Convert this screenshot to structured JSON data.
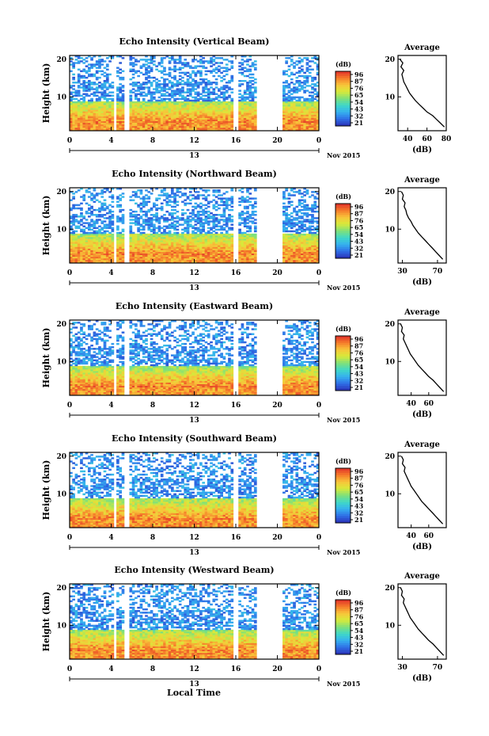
{
  "chart_data": [
    {
      "type": "heatmap",
      "title": "Echo Intensity (Vertical Beam)",
      "ylabel": "Height (km)",
      "y_ticks": [
        "20",
        "10"
      ],
      "x_ticks": [
        "0",
        "4",
        "8",
        "12",
        "16",
        "20",
        "0"
      ],
      "date_label": "13",
      "date_suffix": "Nov 2015",
      "colorbar": {
        "unit": "(dB)",
        "ticks": [
          "96",
          "87",
          "76",
          "65",
          "54",
          "43",
          "32",
          "21"
        ]
      },
      "data_gaps_hours": [
        [
          4.2,
          4.6
        ],
        [
          5.3,
          5.8
        ],
        [
          15.7,
          16.2
        ],
        [
          18.1,
          20.4
        ]
      ],
      "average": {
        "title": "Average",
        "xlabel": "(dB)",
        "x_ticks": [
          "40",
          "60",
          "80"
        ],
        "y_ticks": [
          "20",
          "10"
        ],
        "xlim": [
          30,
          80
        ],
        "profile": [
          [
            78,
            2
          ],
          [
            74,
            3
          ],
          [
            70,
            4
          ],
          [
            66,
            5
          ],
          [
            60,
            6
          ],
          [
            56,
            7
          ],
          [
            52,
            8
          ],
          [
            48,
            9
          ],
          [
            45,
            10
          ],
          [
            42,
            11
          ],
          [
            40,
            12
          ],
          [
            38,
            13
          ],
          [
            36,
            14
          ],
          [
            35,
            15
          ],
          [
            34,
            16
          ],
          [
            36,
            17
          ],
          [
            33,
            18
          ],
          [
            35,
            19
          ],
          [
            32,
            20
          ]
        ]
      }
    },
    {
      "type": "heatmap",
      "title": "Echo Intensity (Northward Beam)",
      "ylabel": "Height (km)",
      "y_ticks": [
        "20",
        "10"
      ],
      "x_ticks": [
        "0",
        "4",
        "8",
        "12",
        "16",
        "20",
        "0"
      ],
      "date_label": "13",
      "date_suffix": "Nov 2015",
      "colorbar": {
        "unit": "(dB)",
        "ticks": [
          "96",
          "87",
          "76",
          "65",
          "54",
          "43",
          "32",
          "21"
        ]
      },
      "data_gaps_hours": [
        [
          4.2,
          4.6
        ],
        [
          5.3,
          5.8
        ],
        [
          15.7,
          16.2
        ],
        [
          18.1,
          20.4
        ]
      ],
      "average": {
        "title": "Average",
        "xlabel": "(dB)",
        "x_ticks": [
          "30",
          "70"
        ],
        "y_ticks": [
          "20",
          "10"
        ],
        "xlim": [
          25,
          80
        ],
        "profile": [
          [
            76,
            2
          ],
          [
            72,
            3
          ],
          [
            68,
            4
          ],
          [
            64,
            5
          ],
          [
            60,
            6
          ],
          [
            56,
            7
          ],
          [
            52,
            8
          ],
          [
            48,
            9
          ],
          [
            45,
            10
          ],
          [
            42,
            11
          ],
          [
            40,
            12
          ],
          [
            37,
            13
          ],
          [
            35,
            14
          ],
          [
            34,
            15
          ],
          [
            32,
            16
          ],
          [
            33,
            17
          ],
          [
            30,
            18
          ],
          [
            31,
            19
          ],
          [
            29,
            20
          ]
        ]
      }
    },
    {
      "type": "heatmap",
      "title": "Echo Intensity (Eastward Beam)",
      "ylabel": "Height (km)",
      "y_ticks": [
        "20",
        "10"
      ],
      "x_ticks": [
        "0",
        "4",
        "8",
        "12",
        "16",
        "20",
        "0"
      ],
      "date_label": "13",
      "date_suffix": "Nov 2015",
      "colorbar": {
        "unit": "(dB)",
        "ticks": [
          "96",
          "87",
          "76",
          "65",
          "54",
          "43",
          "32",
          "21"
        ]
      },
      "data_gaps_hours": [
        [
          4.2,
          4.6
        ],
        [
          5.3,
          5.8
        ],
        [
          15.7,
          16.2
        ],
        [
          18.1,
          20.4
        ]
      ],
      "average": {
        "title": "Average",
        "xlabel": "(dB)",
        "x_ticks": [
          "40",
          "60"
        ],
        "y_ticks": [
          "20",
          "10"
        ],
        "xlim": [
          25,
          80
        ],
        "profile": [
          [
            77,
            2
          ],
          [
            73,
            3
          ],
          [
            69,
            4
          ],
          [
            65,
            5
          ],
          [
            60,
            6
          ],
          [
            56,
            7
          ],
          [
            52,
            8
          ],
          [
            48,
            9
          ],
          [
            45,
            10
          ],
          [
            42,
            11
          ],
          [
            39,
            12
          ],
          [
            37,
            13
          ],
          [
            35,
            14
          ],
          [
            33,
            15
          ],
          [
            31,
            16
          ],
          [
            32,
            17
          ],
          [
            29,
            18
          ],
          [
            30,
            19
          ],
          [
            28,
            20
          ]
        ]
      }
    },
    {
      "type": "heatmap",
      "title": "Echo Intensity (Southward Beam)",
      "ylabel": "Height (km)",
      "y_ticks": [
        "20",
        "10"
      ],
      "x_ticks": [
        "0",
        "4",
        "8",
        "12",
        "16",
        "20",
        "0"
      ],
      "date_label": "13",
      "date_suffix": "Nov 2015",
      "colorbar": {
        "unit": "(dB)",
        "ticks": [
          "96",
          "87",
          "76",
          "65",
          "54",
          "43",
          "32",
          "21"
        ]
      },
      "data_gaps_hours": [
        [
          4.2,
          4.6
        ],
        [
          5.3,
          5.8
        ],
        [
          15.7,
          16.2
        ],
        [
          18.1,
          20.4
        ]
      ],
      "average": {
        "title": "Average",
        "xlabel": "(dB)",
        "x_ticks": [
          "40",
          "60"
        ],
        "y_ticks": [
          "20",
          "10"
        ],
        "xlim": [
          25,
          80
        ],
        "profile": [
          [
            76,
            2
          ],
          [
            72,
            3
          ],
          [
            68,
            4
          ],
          [
            64,
            5
          ],
          [
            60,
            6
          ],
          [
            56,
            7
          ],
          [
            52,
            8
          ],
          [
            49,
            9
          ],
          [
            46,
            10
          ],
          [
            43,
            11
          ],
          [
            40,
            12
          ],
          [
            38,
            13
          ],
          [
            36,
            14
          ],
          [
            34,
            15
          ],
          [
            32,
            16
          ],
          [
            33,
            17
          ],
          [
            30,
            18
          ],
          [
            31,
            19
          ],
          [
            29,
            20
          ]
        ]
      }
    },
    {
      "type": "heatmap",
      "title": "Echo Intensity (Westward Beam)",
      "ylabel": "Height (km)",
      "y_ticks": [
        "20",
        "10"
      ],
      "x_ticks": [
        "0",
        "4",
        "8",
        "12",
        "16",
        "20",
        "0"
      ],
      "date_label": "13",
      "date_suffix": "Nov 2015",
      "colorbar": {
        "unit": "(dB)",
        "ticks": [
          "96",
          "87",
          "76",
          "65",
          "54",
          "43",
          "32",
          "21"
        ]
      },
      "data_gaps_hours": [
        [
          4.2,
          4.6
        ],
        [
          5.3,
          5.8
        ],
        [
          15.7,
          16.2
        ],
        [
          18.1,
          20.4
        ]
      ],
      "average": {
        "title": "Average",
        "xlabel": "(dB)",
        "x_ticks": [
          "30",
          "70"
        ],
        "y_ticks": [
          "20",
          "10"
        ],
        "xlim": [
          25,
          80
        ],
        "profile": [
          [
            77,
            2
          ],
          [
            73,
            3
          ],
          [
            69,
            4
          ],
          [
            65,
            5
          ],
          [
            60,
            6
          ],
          [
            56,
            7
          ],
          [
            52,
            8
          ],
          [
            48,
            9
          ],
          [
            45,
            10
          ],
          [
            42,
            11
          ],
          [
            39,
            12
          ],
          [
            37,
            13
          ],
          [
            35,
            14
          ],
          [
            33,
            15
          ],
          [
            31,
            16
          ],
          [
            32,
            17
          ],
          [
            29,
            18
          ],
          [
            30,
            19
          ],
          [
            28,
            20
          ]
        ]
      }
    }
  ],
  "figure": {
    "xlabel": "Local Time",
    "colorscale": [
      "#2a2fb5",
      "#2f6ee6",
      "#35b0f0",
      "#3fd8c8",
      "#7fe07a",
      "#d8ea3a",
      "#f8c53a",
      "#f57a2a",
      "#e0302a"
    ]
  }
}
